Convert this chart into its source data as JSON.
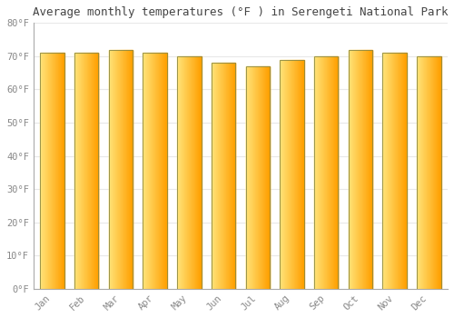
{
  "title": "Average monthly temperatures (°F ) in Serengeti National Park",
  "months": [
    "Jan",
    "Feb",
    "Mar",
    "Apr",
    "May",
    "Jun",
    "Jul",
    "Aug",
    "Sep",
    "Oct",
    "Nov",
    "Dec"
  ],
  "values": [
    71,
    71,
    72,
    71,
    70,
    68,
    67,
    69,
    70,
    72,
    71,
    70
  ],
  "bar_color_left": "#FFE57A",
  "bar_color_right": "#FFA000",
  "bar_edge_color": "#888844",
  "background_color": "#FFFFFF",
  "axes_facecolor": "#FFFFFF",
  "text_color": "#888888",
  "title_color": "#444444",
  "ylim": [
    0,
    80
  ],
  "ytick_step": 10,
  "ylabel_suffix": "°F",
  "grid_color": "#E8E8E8",
  "title_fontsize": 9,
  "tick_fontsize": 7.5,
  "bar_width": 0.7,
  "gradient_steps": 60
}
